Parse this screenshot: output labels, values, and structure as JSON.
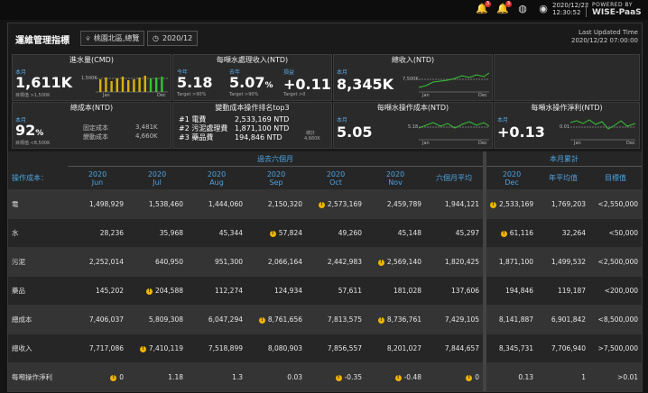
{
  "topbar": {
    "date": "2020/12/22",
    "time": "12:30:52",
    "brand_top": "POWERED BY",
    "brand_main": "WISE-PaaS",
    "notif_badge": "3",
    "alert_badge": "3"
  },
  "header": {
    "title": "運維管理指標",
    "filter_label": "桃園北區,總覽",
    "date_label": "2020/12",
    "updated_label": "Last Updated Time",
    "updated_value": "2020/12/22 07:00:00"
  },
  "cards": {
    "intake": {
      "title": "進水量(CMD)",
      "sub": "本月",
      "value": "1,611K",
      "target": "目標值 >1,500K",
      "ref": "1,500K",
      "jan": "Jan",
      "dec": "Dec"
    },
    "revenue_per_ton": {
      "title": "每噸水處理收入(NTD)",
      "m1_label": "今年",
      "m1_value": "5.18",
      "m1_target": "Target >90%",
      "m2_label": "去年",
      "m2_value": "5.07",
      "m2_unit": "%",
      "m2_target": "Target >90%",
      "m3_label": "損益",
      "m3_value": "+0.11",
      "m3_target": "Target >0"
    },
    "total_revenue": {
      "title": "總收入(NTD)",
      "sub": "本月",
      "value": "8,345K",
      "ref": "7,500K",
      "jan": "Jan",
      "dec": "Dec"
    },
    "total_cost": {
      "title": "總成本(NTD)",
      "sub": "本月",
      "value": "92",
      "unit": "%",
      "target": "目標值 <8,500K",
      "fixed_label": "固定成本",
      "fixed_value": "3,481K",
      "var_label": "變動成本",
      "var_value": "4,660K"
    },
    "top3": {
      "title": "變動成本操作排名top3",
      "rows": [
        {
          "rank": "#1 電費",
          "value": "2,533,169 NTD"
        },
        {
          "rank": "#2 污泥處理費",
          "value": "1,871,100 NTD"
        },
        {
          "rank": "#3 藥品費",
          "value": "194,846 NTD"
        }
      ],
      "total_label": "總計",
      "total_value": "4,660K"
    },
    "cost_per_ton": {
      "title": "每噸水操作成本(NTD)",
      "sub": "本月",
      "value": "5.05",
      "ref": "5.18",
      "jan": "Jan",
      "dec": "Dec"
    },
    "profit_per_ton": {
      "title": "每噸水操作淨利(NTD)",
      "sub": "本月",
      "value": "+0.13",
      "ref": "0.01",
      "jan": "Jan",
      "dec": "Dec"
    }
  },
  "table": {
    "row_header": "操作成本：",
    "group_past": "過去六個月",
    "group_month": "本月累計",
    "columns": [
      {
        "year": "2020",
        "month": "Jun"
      },
      {
        "year": "2020",
        "month": "Jul"
      },
      {
        "year": "2020",
        "month": "Aug"
      },
      {
        "year": "2020",
        "month": "Sep"
      },
      {
        "year": "2020",
        "month": "Oct"
      },
      {
        "year": "2020",
        "month": "Nov"
      }
    ],
    "avg_col": "六個月平均",
    "cur_col": {
      "year": "2020",
      "month": "Dec"
    },
    "yavg_col": "年平均值",
    "target_col": "目標值",
    "rows": [
      {
        "label": "電",
        "values": [
          "1,498,929",
          "1,538,460",
          "1,444,060",
          "2,150,320",
          "2,573,169",
          "2,459,789",
          "1,944,121",
          "2,533,169",
          "1,769,203",
          "<2,550,000"
        ],
        "warn": [
          false,
          false,
          false,
          false,
          true,
          false,
          false,
          true,
          false,
          false
        ]
      },
      {
        "label": "水",
        "values": [
          "28,236",
          "35,968",
          "45,344",
          "57,824",
          "49,260",
          "45,148",
          "45,297",
          "61,116",
          "32,264",
          "<50,000"
        ],
        "warn": [
          false,
          false,
          false,
          true,
          false,
          false,
          false,
          true,
          false,
          false
        ]
      },
      {
        "label": "污泥",
        "values": [
          "2,252,014",
          "640,950",
          "951,300",
          "2,066,164",
          "2,442,983",
          "2,569,140",
          "1,820,425",
          "1,871,100",
          "1,499,532",
          "<2,500,000"
        ],
        "warn": [
          false,
          false,
          false,
          false,
          false,
          true,
          false,
          false,
          false,
          false
        ]
      },
      {
        "label": "藥品",
        "values": [
          "145,202",
          "204,588",
          "112,274",
          "124,934",
          "57,611",
          "181,028",
          "137,606",
          "194,846",
          "119,187",
          "<200,000"
        ],
        "warn": [
          false,
          true,
          false,
          false,
          false,
          false,
          false,
          false,
          false,
          false
        ]
      },
      {
        "label": "總成本",
        "values": [
          "7,406,037",
          "5,809,308",
          "6,047,294",
          "8,761,656",
          "7,813,575",
          "8,736,761",
          "7,429,105",
          "8,141,887",
          "6,901,842",
          "<8,500,000"
        ],
        "warn": [
          false,
          false,
          false,
          true,
          false,
          true,
          false,
          false,
          false,
          false
        ]
      },
      {
        "label": "總收入",
        "values": [
          "7,717,086",
          "7,410,119",
          "7,518,899",
          "8,080,903",
          "7,856,557",
          "8,201,027",
          "7,844,657",
          "8,345,731",
          "7,706,940",
          ">7,500,000"
        ],
        "warn": [
          false,
          true,
          false,
          false,
          false,
          false,
          false,
          false,
          false,
          false
        ]
      },
      {
        "label": "每噸操作淨利",
        "values": [
          "0",
          "1.18",
          "1.3",
          "0.03",
          "-0.35",
          "-0.48",
          "0",
          "0.13",
          "1",
          ">0.01"
        ],
        "warn": [
          true,
          false,
          false,
          false,
          true,
          true,
          true,
          false,
          false,
          false
        ]
      }
    ]
  },
  "colors": {
    "accent": "#4ea3e0",
    "warn": "#f0b400",
    "chart_green": "#35c435",
    "bar_yellow": "#d9b400"
  }
}
